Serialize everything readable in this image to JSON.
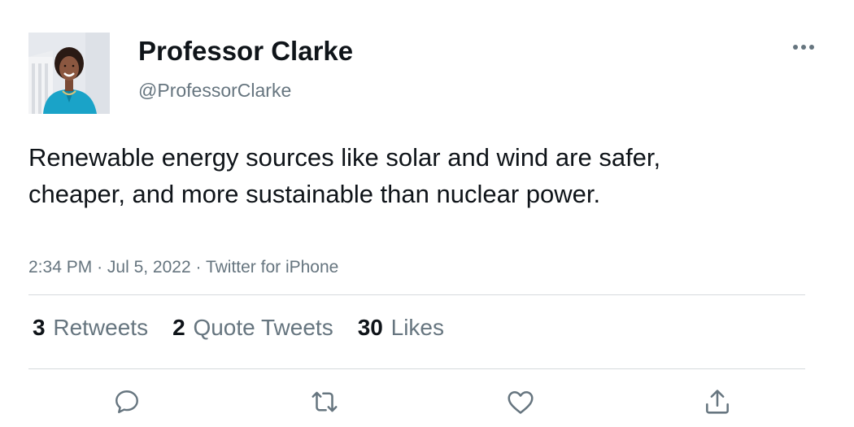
{
  "user": {
    "display_name": "Professor Clarke",
    "handle": "@ProfessorClarke",
    "avatar_icon": "profile-photo"
  },
  "tweet": {
    "text": "Renewable energy sources like solar and wind are safer, cheaper, and more sustainable than nuclear power.",
    "time": "2:34 PM",
    "date": "Jul 5, 2022",
    "source": "Twitter for iPhone",
    "separator": "·"
  },
  "stats": {
    "retweets": {
      "count": "3",
      "label": "Retweets"
    },
    "quotes": {
      "count": "2",
      "label": "Quote Tweets"
    },
    "likes": {
      "count": "30",
      "label": "Likes"
    }
  },
  "actions": {
    "reply_icon": "reply-icon",
    "retweet_icon": "retweet-icon",
    "like_icon": "like-icon",
    "share_icon": "share-icon"
  },
  "colors": {
    "text_primary": "#0f1419",
    "text_secondary": "#66757f",
    "divider": "#d6dadd"
  }
}
